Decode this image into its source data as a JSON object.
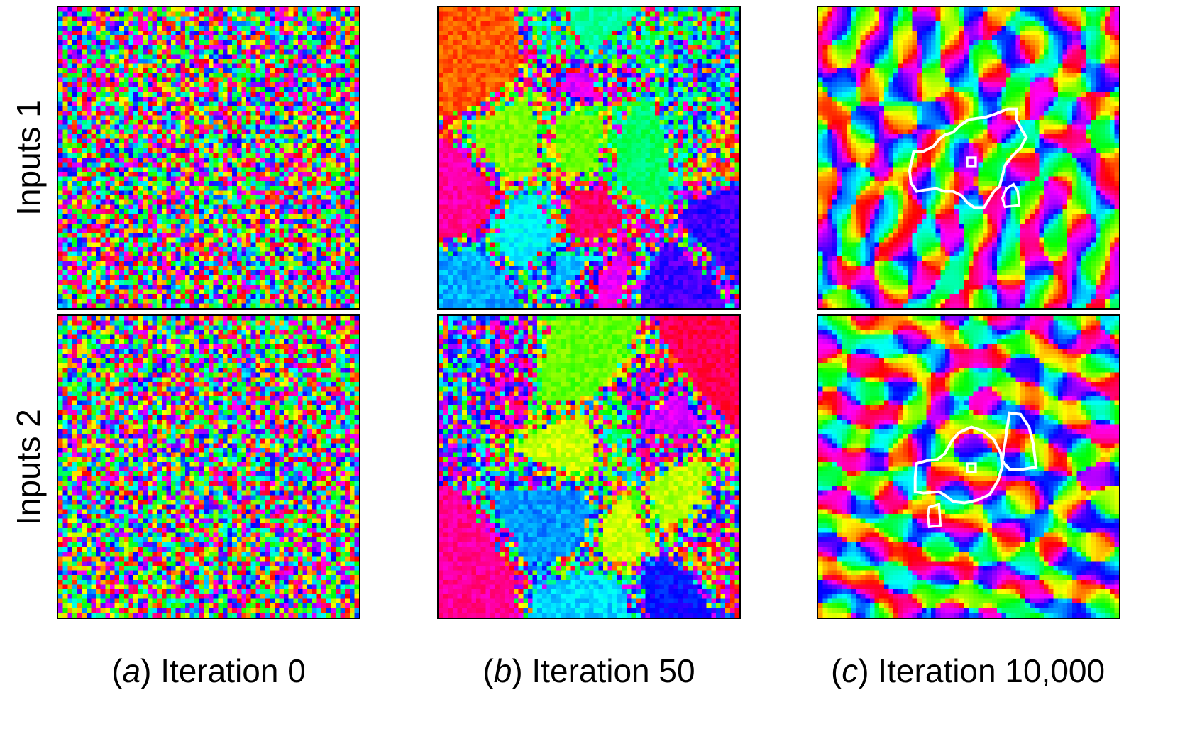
{
  "rows": [
    {
      "label": "Inputs 1"
    },
    {
      "label": "Inputs 2"
    }
  ],
  "columns": [
    {
      "letter": "a",
      "caption": "Iteration 0",
      "stage": "random"
    },
    {
      "letter": "b",
      "caption": "Iteration 50",
      "stage": "patches"
    },
    {
      "letter": "c",
      "caption": "Iteration 10,000",
      "stage": "smooth"
    }
  ],
  "colors": {
    "frame": "#000000",
    "outline": "#ffffff",
    "background": "#ffffff",
    "colormap": "hsv-cyclic"
  }
}
